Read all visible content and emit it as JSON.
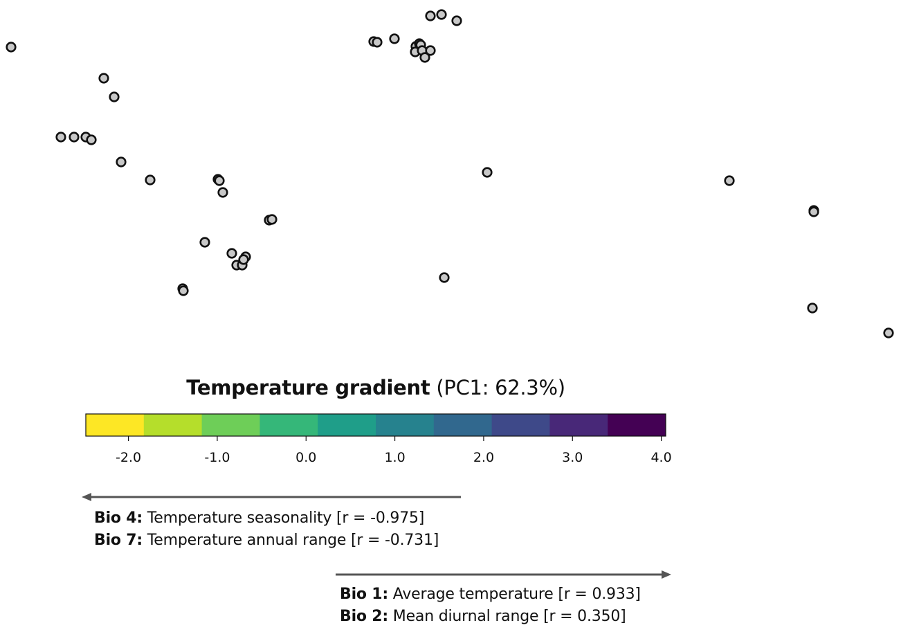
{
  "chart_data": {
    "type": "scatter",
    "title_bold": "Temperature gradient",
    "title_rest": "(PC1: 62.3%)",
    "points": [
      [
        16,
        68
      ],
      [
        150,
        113
      ],
      [
        165,
        140
      ],
      [
        88,
        198
      ],
      [
        107,
        198
      ],
      [
        124,
        198
      ],
      [
        132,
        202
      ],
      [
        175,
        234
      ],
      [
        217,
        260
      ],
      [
        315,
        259
      ],
      [
        317,
        261
      ],
      [
        322,
        278
      ],
      [
        389,
        318
      ],
      [
        393,
        317
      ],
      [
        296,
        350
      ],
      [
        335,
        366
      ],
      [
        342,
        383
      ],
      [
        350,
        383
      ],
      [
        355,
        371
      ],
      [
        352,
        375
      ],
      [
        264,
        417
      ],
      [
        265,
        420
      ],
      [
        540,
        60
      ],
      [
        545,
        61
      ],
      [
        570,
        56
      ],
      [
        622,
        23
      ],
      [
        638,
        21
      ],
      [
        660,
        30
      ],
      [
        601,
        67
      ],
      [
        606,
        63
      ],
      [
        608,
        65
      ],
      [
        600,
        75
      ],
      [
        610,
        73
      ],
      [
        622,
        73
      ],
      [
        614,
        83
      ],
      [
        704,
        249
      ],
      [
        642,
        401
      ],
      [
        1054,
        261
      ],
      [
        1176,
        304
      ],
      [
        1176,
        306
      ],
      [
        1174,
        445
      ],
      [
        1284,
        481
      ]
    ],
    "colorbar": {
      "colors": [
        "#fde725",
        "#b5de2b",
        "#6ece58",
        "#35b779",
        "#1f9e89",
        "#26828e",
        "#31688e",
        "#3e4989",
        "#482878",
        "#440154"
      ],
      "ticks": [
        "-2.0",
        "-1.0",
        "0.0",
        "1.0",
        "2.0",
        "3.0",
        "4.0"
      ],
      "tick_values": [
        -2.0,
        -1.0,
        0.0,
        1.0,
        2.0,
        3.0,
        4.0
      ],
      "range": [
        -2.48,
        4.05
      ]
    },
    "arrows": {
      "negative": {
        "lines": [
          {
            "bold": "Bio 4:",
            "text": " Temperature seasonality [r = -0.975]"
          },
          {
            "bold": "Bio 7:",
            "text": " Temperature annual range [r = -0.731]"
          }
        ]
      },
      "positive": {
        "lines": [
          {
            "bold": "Bio 1:",
            "text": " Average temperature [r = 0.933]"
          },
          {
            "bold": "Bio 2:",
            "text": " Mean diurnal range [r = 0.350]"
          }
        ]
      }
    },
    "colors": {
      "point_fill": "#c8c8c8",
      "point_stroke": "#111111",
      "arrow": "#555555"
    }
  }
}
